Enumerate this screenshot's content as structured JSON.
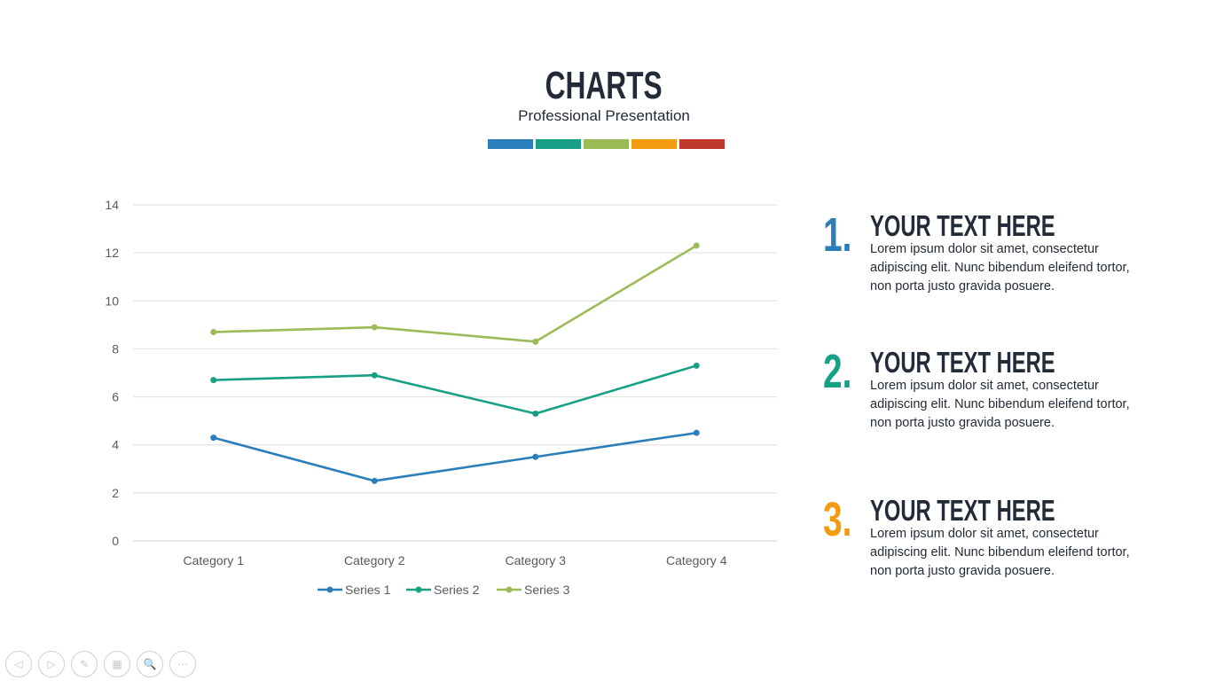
{
  "header": {
    "title": "CHARTS",
    "subtitle": "Professional Presentation"
  },
  "colors": [
    "#2a7fba",
    "#17a085",
    "#9bbb59",
    "#f39c12",
    "#c0392b"
  ],
  "chart_data": {
    "type": "line",
    "stacked": true,
    "categories": [
      "Category 1",
      "Category 2",
      "Category 3",
      "Category 4"
    ],
    "series": [
      {
        "name": "Series 1",
        "values": [
          4.3,
          2.5,
          3.5,
          4.5
        ],
        "color": "#2a7fba"
      },
      {
        "name": "Series 2",
        "values": [
          2.4,
          4.4,
          1.8,
          2.8
        ],
        "color": "#17a085"
      },
      {
        "name": "Series 3",
        "values": [
          2,
          2,
          3,
          5
        ],
        "color": "#9bbb59"
      }
    ],
    "yticks": [
      "0",
      "2",
      "4",
      "6",
      "8",
      "10",
      "12",
      "14"
    ],
    "ylim": [
      0,
      14
    ],
    "grid": true,
    "legend": "bottom"
  },
  "items": [
    {
      "number": "1.",
      "heading": "YOUR TEXT HERE",
      "text": "Lorem ipsum dolor sit amet, consectetur adipiscing elit. Nunc bibendum eleifend tortor, non porta justo gravida posuere.",
      "color": "#2a7fba"
    },
    {
      "number": "2.",
      "heading": "YOUR TEXT HERE",
      "text": "Lorem ipsum dolor sit amet, consectetur adipiscing elit. Nunc bibendum eleifend tortor, non porta justo gravida posuere.",
      "color": "#17a085"
    },
    {
      "number": "3.",
      "heading": "YOUR TEXT HERE",
      "text": "Lorem ipsum dolor sit amet, consectetur adipiscing elit. Nunc bibendum eleifend tortor, non porta justo gravida posuere.",
      "color": "#f39c12"
    }
  ],
  "toolbar": [
    {
      "icon": "previous-icon",
      "glyph": "◁"
    },
    {
      "icon": "next-icon",
      "glyph": "▷"
    },
    {
      "icon": "pen-icon",
      "glyph": "✎"
    },
    {
      "icon": "slides-icon",
      "glyph": "▦"
    },
    {
      "icon": "zoom-icon",
      "glyph": "🔍"
    },
    {
      "icon": "more-icon",
      "glyph": "⋯"
    }
  ]
}
